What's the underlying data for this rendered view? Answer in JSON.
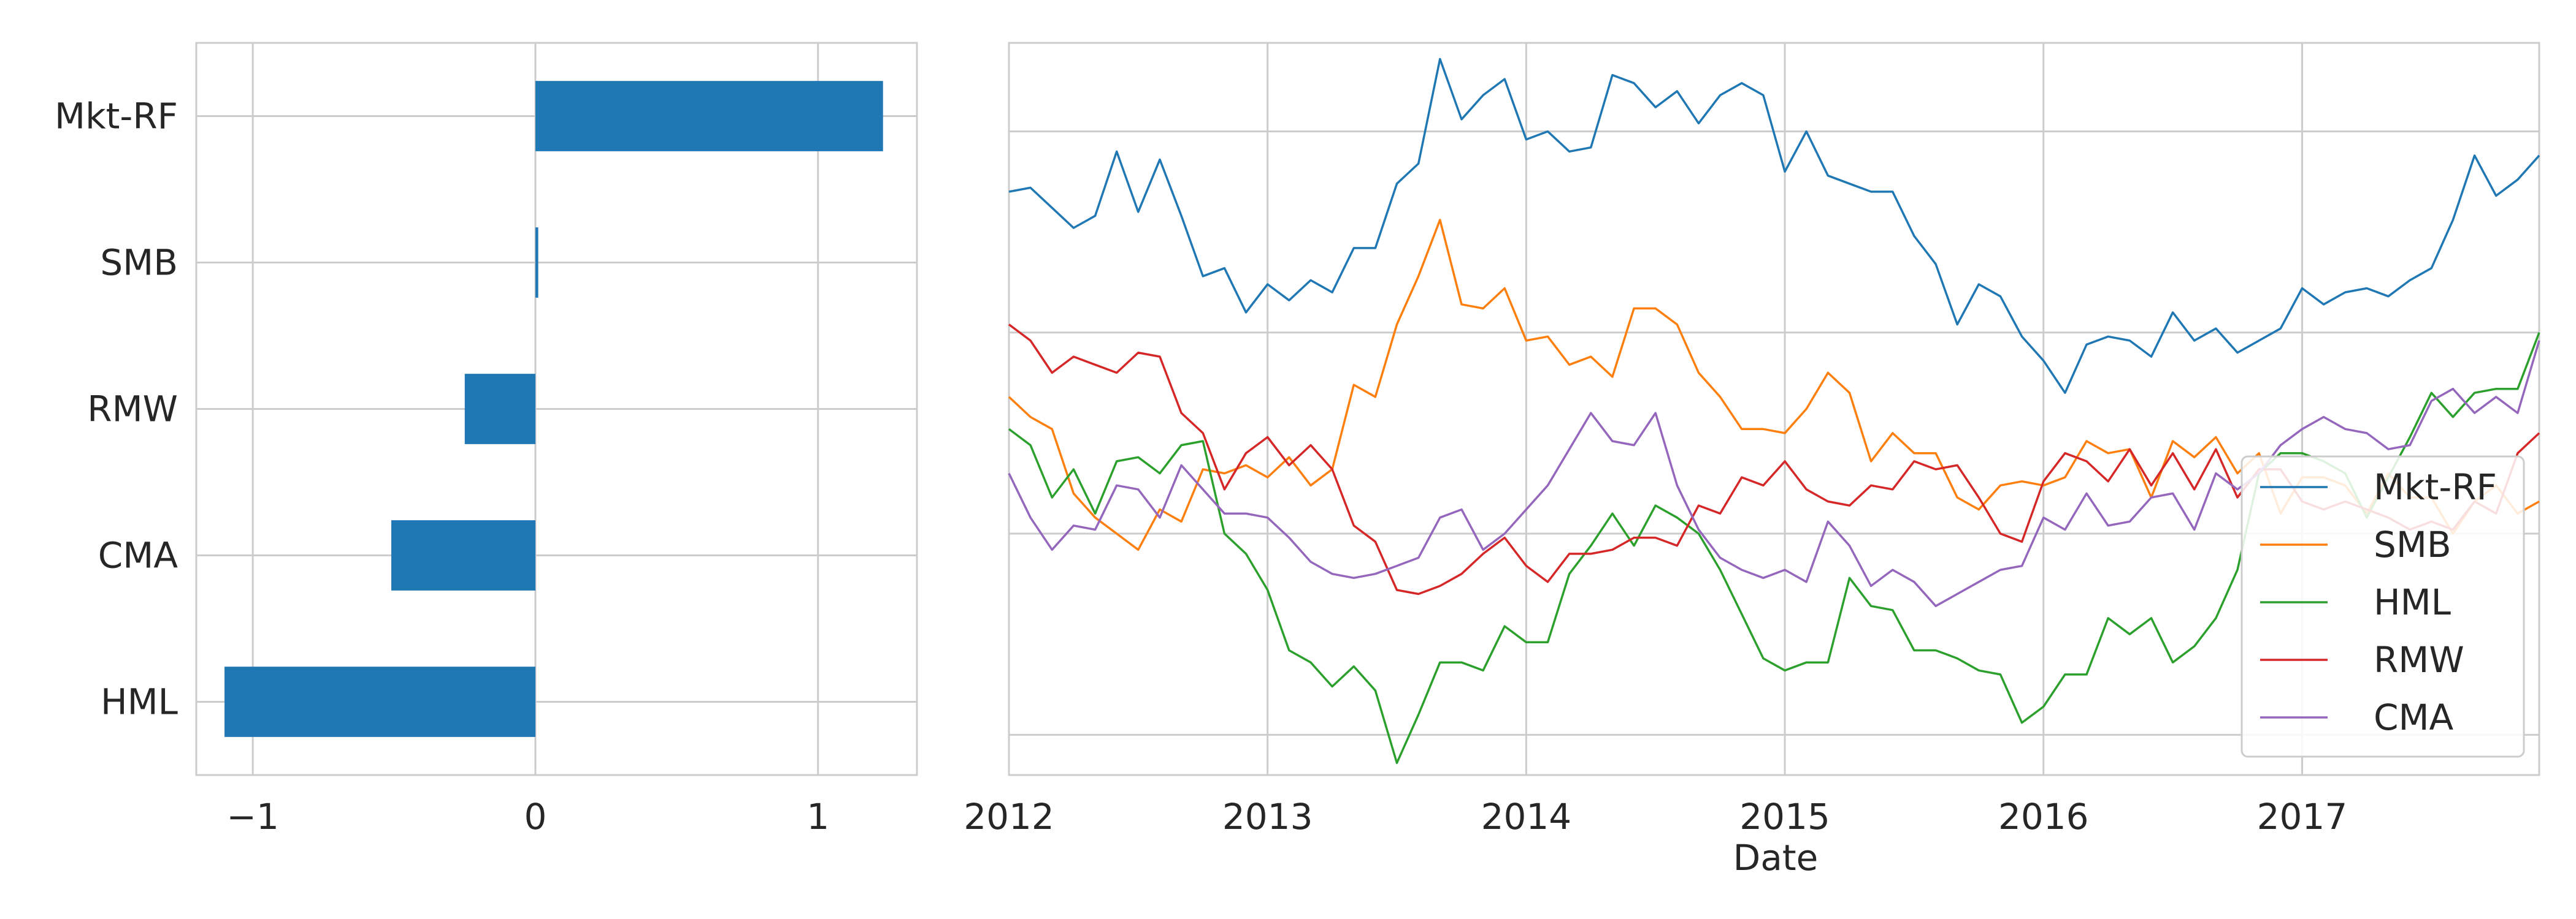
{
  "chart_data": [
    {
      "type": "bar",
      "orientation": "horizontal",
      "categories": [
        "Mkt-RF",
        "SMB",
        "RMW",
        "CMA",
        "HML"
      ],
      "values": [
        1.23,
        0.01,
        -0.25,
        -0.51,
        -1.1
      ],
      "xlim": [
        -1.2,
        1.35
      ],
      "xticks": [
        -1,
        0,
        1
      ],
      "xtick_labels": [
        "−1",
        "0",
        "1"
      ],
      "color": "#1f77b4",
      "grid": true
    },
    {
      "type": "line",
      "xlabel": "Date",
      "xlim": [
        "2012-01",
        "2017-12"
      ],
      "xtick_labels": [
        "2012",
        "2013",
        "2014",
        "2015",
        "2016",
        "2017"
      ],
      "grid": true,
      "legend_position": "lower-right",
      "months": [
        "2012-01",
        "2012-02",
        "2012-03",
        "2012-04",
        "2012-05",
        "2012-06",
        "2012-07",
        "2012-08",
        "2012-09",
        "2012-10",
        "2012-11",
        "2012-12",
        "2013-01",
        "2013-02",
        "2013-03",
        "2013-04",
        "2013-05",
        "2013-06",
        "2013-07",
        "2013-08",
        "2013-09",
        "2013-10",
        "2013-11",
        "2013-12",
        "2014-01",
        "2014-02",
        "2014-03",
        "2014-04",
        "2014-05",
        "2014-06",
        "2014-07",
        "2014-08",
        "2014-09",
        "2014-10",
        "2014-11",
        "2014-12",
        "2015-01",
        "2015-02",
        "2015-03",
        "2015-04",
        "2015-05",
        "2015-06",
        "2015-07",
        "2015-08",
        "2015-09",
        "2015-10",
        "2015-11",
        "2015-12",
        "2016-01",
        "2016-02",
        "2016-03",
        "2016-04",
        "2016-05",
        "2016-06",
        "2016-07",
        "2016-08",
        "2016-09",
        "2016-10",
        "2016-11",
        "2016-12",
        "2017-01",
        "2017-02",
        "2017-03",
        "2017-04",
        "2017-05",
        "2017-06",
        "2017-07",
        "2017-08",
        "2017-09",
        "2017-10",
        "2017-11",
        "2017-12"
      ],
      "series": [
        {
          "name": "Mkt-RF",
          "color": "#1f77b4",
          "values": [
            0.85,
            0.86,
            0.81,
            0.76,
            0.79,
            0.95,
            0.8,
            0.93,
            0.79,
            0.64,
            0.66,
            0.55,
            0.62,
            0.58,
            0.63,
            0.6,
            0.71,
            0.71,
            0.87,
            0.92,
            1.18,
            1.03,
            1.09,
            1.13,
            0.98,
            1.0,
            0.95,
            0.96,
            1.14,
            1.12,
            1.06,
            1.1,
            1.02,
            1.09,
            1.12,
            1.09,
            0.9,
            1.0,
            0.89,
            0.87,
            0.85,
            0.85,
            0.74,
            0.67,
            0.52,
            0.62,
            0.59,
            0.49,
            0.43,
            0.35,
            0.47,
            0.49,
            0.48,
            0.44,
            0.55,
            0.48,
            0.51,
            0.45,
            0.48,
            0.51,
            0.61,
            0.57,
            0.6,
            0.61,
            0.59,
            0.63,
            0.66,
            0.78,
            0.94,
            0.84,
            0.88,
            0.94
          ]
        },
        {
          "name": "SMB",
          "color": "#ff7f0e",
          "values": [
            0.34,
            0.29,
            0.26,
            0.1,
            0.04,
            0.0,
            -0.04,
            0.06,
            0.03,
            0.16,
            0.15,
            0.17,
            0.14,
            0.19,
            0.12,
            0.16,
            0.37,
            0.34,
            0.52,
            0.64,
            0.78,
            0.57,
            0.56,
            0.61,
            0.48,
            0.49,
            0.42,
            0.44,
            0.39,
            0.56,
            0.56,
            0.52,
            0.4,
            0.34,
            0.26,
            0.26,
            0.25,
            0.31,
            0.4,
            0.35,
            0.18,
            0.25,
            0.2,
            0.2,
            0.09,
            0.06,
            0.12,
            0.13,
            0.12,
            0.14,
            0.23,
            0.2,
            0.21,
            0.09,
            0.23,
            0.19,
            0.24,
            0.15,
            0.2,
            0.05,
            0.14,
            0.14,
            0.12,
            0.05,
            0.15,
            0.09,
            0.09,
            0.0,
            0.08,
            0.12,
            0.05,
            0.08
          ]
        },
        {
          "name": "HML",
          "color": "#2ca02c",
          "values": [
            0.26,
            0.22,
            0.09,
            0.16,
            0.05,
            0.18,
            0.19,
            0.15,
            0.22,
            0.23,
            0.0,
            -0.05,
            -0.14,
            -0.29,
            -0.32,
            -0.38,
            -0.33,
            -0.39,
            -0.57,
            -0.45,
            -0.32,
            -0.32,
            -0.34,
            -0.23,
            -0.27,
            -0.27,
            -0.1,
            -0.03,
            0.05,
            -0.03,
            0.07,
            0.04,
            0.0,
            -0.09,
            -0.2,
            -0.31,
            -0.34,
            -0.32,
            -0.32,
            -0.11,
            -0.18,
            -0.19,
            -0.29,
            -0.29,
            -0.31,
            -0.34,
            -0.35,
            -0.47,
            -0.43,
            -0.35,
            -0.35,
            -0.21,
            -0.25,
            -0.21,
            -0.32,
            -0.28,
            -0.21,
            -0.09,
            0.15,
            0.2,
            0.2,
            0.18,
            0.15,
            0.04,
            0.14,
            0.24,
            0.35,
            0.29,
            0.35,
            0.36,
            0.36,
            0.5
          ]
        },
        {
          "name": "RMW",
          "color": "#d62728",
          "values": [
            0.52,
            0.48,
            0.4,
            0.44,
            0.42,
            0.4,
            0.45,
            0.44,
            0.3,
            0.25,
            0.11,
            0.2,
            0.24,
            0.17,
            0.22,
            0.16,
            0.02,
            -0.02,
            -0.14,
            -0.15,
            -0.13,
            -0.1,
            -0.05,
            -0.01,
            -0.08,
            -0.12,
            -0.05,
            -0.05,
            -0.04,
            -0.01,
            -0.01,
            -0.03,
            0.07,
            0.05,
            0.14,
            0.12,
            0.18,
            0.11,
            0.08,
            0.07,
            0.12,
            0.11,
            0.18,
            0.16,
            0.17,
            0.09,
            0.0,
            -0.02,
            0.13,
            0.2,
            0.18,
            0.13,
            0.21,
            0.12,
            0.2,
            0.11,
            0.21,
            0.09,
            0.16,
            0.16,
            0.08,
            0.06,
            0.08,
            0.06,
            0.04,
            0.01,
            0.03,
            0.01,
            0.08,
            0.05,
            0.2,
            0.25
          ]
        },
        {
          "name": "CMA",
          "color": "#9467bd",
          "values": [
            0.15,
            0.04,
            -0.04,
            0.02,
            0.01,
            0.12,
            0.11,
            0.04,
            0.17,
            0.11,
            0.05,
            0.05,
            0.04,
            -0.01,
            -0.07,
            -0.1,
            -0.11,
            -0.1,
            -0.08,
            -0.06,
            0.04,
            0.06,
            -0.04,
            0.0,
            0.06,
            0.12,
            0.21,
            0.3,
            0.23,
            0.22,
            0.3,
            0.12,
            0.01,
            -0.06,
            -0.09,
            -0.11,
            -0.09,
            -0.12,
            0.03,
            -0.03,
            -0.13,
            -0.09,
            -0.12,
            -0.18,
            -0.15,
            -0.12,
            -0.09,
            -0.08,
            0.04,
            0.01,
            0.1,
            0.02,
            0.03,
            0.09,
            0.1,
            0.01,
            0.15,
            0.11,
            0.15,
            0.22,
            0.26,
            0.29,
            0.26,
            0.25,
            0.21,
            0.22,
            0.33,
            0.36,
            0.3,
            0.34,
            0.3,
            0.48
          ]
        }
      ]
    }
  ]
}
